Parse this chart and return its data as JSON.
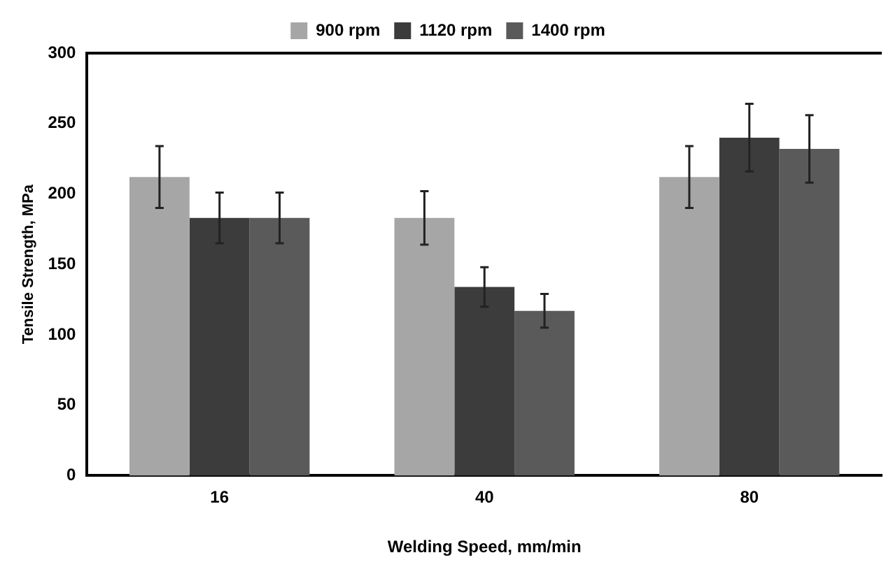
{
  "chart_data": {
    "type": "bar",
    "xlabel": "Welding Speed, mm/min",
    "ylabel": "Tensile Strength, MPa",
    "categories": [
      "16",
      "40",
      "80"
    ],
    "series": [
      {
        "name": "900 rpm",
        "color": "#a6a6a6",
        "values": [
          212,
          183,
          212
        ],
        "errors": [
          22,
          19,
          22
        ]
      },
      {
        "name": "1120 rpm",
        "color": "#3c3c3c",
        "values": [
          183,
          134,
          240
        ],
        "errors": [
          18,
          14,
          24
        ]
      },
      {
        "name": "1400 rpm",
        "color": "#5a5a5a",
        "values": [
          183,
          117,
          232
        ],
        "errors": [
          18,
          12,
          24
        ]
      }
    ],
    "ylim": [
      0,
      300
    ],
    "yticks": [
      0,
      50,
      100,
      150,
      200,
      250,
      300
    ],
    "grid": false,
    "legend": "top"
  }
}
